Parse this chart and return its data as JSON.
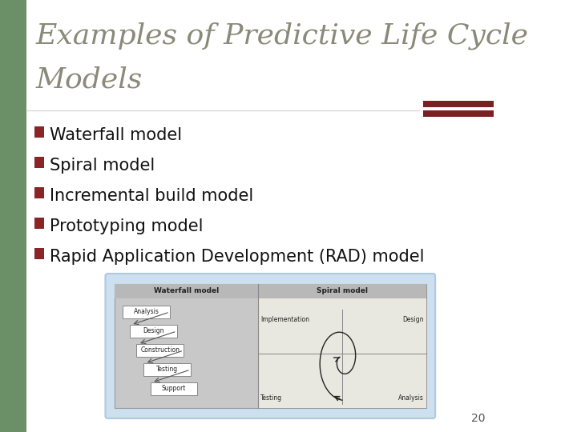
{
  "title_line1": "Examples of Predictive Life Cycle",
  "title_line2": "Models",
  "title_color": "#8a8a7a",
  "title_fontsize": 26,
  "bg_color": "#ffffff",
  "left_bar_color": "#6b9068",
  "divider_color": "#d8d8d0",
  "accent_bar_color": "#7a2020",
  "bullet_color": "#8b2525",
  "bullet_items": [
    "Waterfall model",
    "Spiral model",
    "Incremental build model",
    "Prototyping model",
    "Rapid Application Development (RAD) model"
  ],
  "bullet_fontsize": 15,
  "text_color": "#111111",
  "page_number": "20",
  "diagram_outer_color": "#cce0f0",
  "diagram_inner_color": "#c8c8c8",
  "waterfall_section_color": "#c0c0c0",
  "spiral_section_color": "#e0e0e0",
  "wf_boxes": [
    "Analysis",
    "Design",
    "Construction",
    "Testing",
    "Support"
  ],
  "sp_labels_top": [
    "Implementation",
    "Design"
  ],
  "sp_labels_bottom": [
    "Testing",
    "Analysis"
  ]
}
